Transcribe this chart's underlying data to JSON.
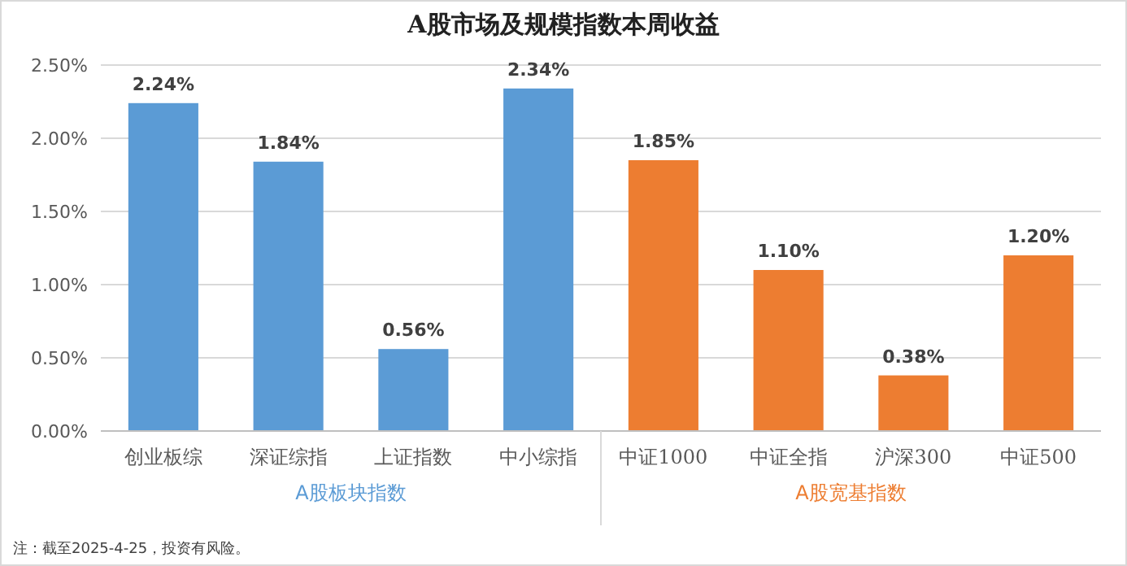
{
  "chart_data": {
    "type": "bar",
    "title": "A股市场及规模指数本周收益",
    "categories": [
      "创业板综",
      "深证综指",
      "上证指数",
      "中小综指",
      "中证1000",
      "中证全指",
      "沪深300",
      "中证500"
    ],
    "values": [
      2.24,
      1.84,
      0.56,
      2.34,
      1.85,
      1.1,
      0.38,
      1.2
    ],
    "colors": [
      "#5b9bd5",
      "#5b9bd5",
      "#5b9bd5",
      "#5b9bd5",
      "#ed7d31",
      "#ed7d31",
      "#ed7d31",
      "#ed7d31"
    ],
    "value_labels": [
      "2.24%",
      "1.84%",
      "0.56%",
      "2.34%",
      "1.85%",
      "1.10%",
      "0.38%",
      "1.20%"
    ],
    "ylim": [
      0,
      2.5
    ],
    "yticks": [
      {
        "value": 0,
        "label": "0.00%"
      },
      {
        "value": 0.5,
        "label": "0.50%"
      },
      {
        "value": 1,
        "label": "1.00%"
      },
      {
        "value": 1.5,
        "label": "1.50%"
      },
      {
        "value": 2,
        "label": "2.00%"
      },
      {
        "value": 2.5,
        "label": "2.50%"
      }
    ],
    "grid": "y",
    "annotations": [
      "A股板块指数",
      "A股宽基指数",
      "注：截至2025-4-25，投资有风险。"
    ]
  }
}
